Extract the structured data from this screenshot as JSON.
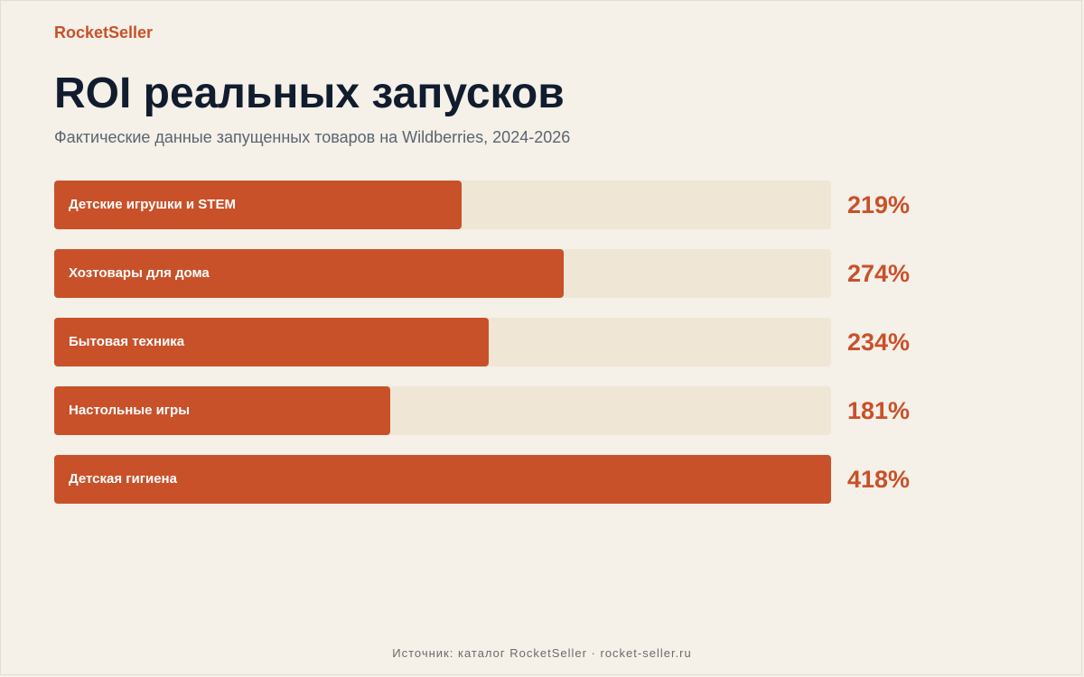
{
  "brand": "RocketSeller",
  "title": "ROI реальных запусков",
  "subtitle": "Фактические данные запущенных товаров на Wildberries, 2024-2026",
  "footer": "Источник: каталог RocketSeller · rocket-seller.ru",
  "colors": {
    "accent": "#c8512a",
    "track": "#efe6d6",
    "background": "#f5f0e8",
    "title": "#111c2e"
  },
  "chart_data": {
    "type": "bar",
    "orientation": "horizontal",
    "categories": [
      "Детские игрушки и STEM",
      "Хозтовары для дома",
      "Бытовая техника",
      "Настольные игры",
      "Детская гигиена"
    ],
    "values": [
      219,
      274,
      234,
      181,
      418
    ],
    "value_labels": [
      "219%",
      "274%",
      "234%",
      "181%",
      "418%"
    ],
    "unit": "%",
    "xlim": [
      0,
      418
    ],
    "grid": false,
    "legend": "none"
  }
}
